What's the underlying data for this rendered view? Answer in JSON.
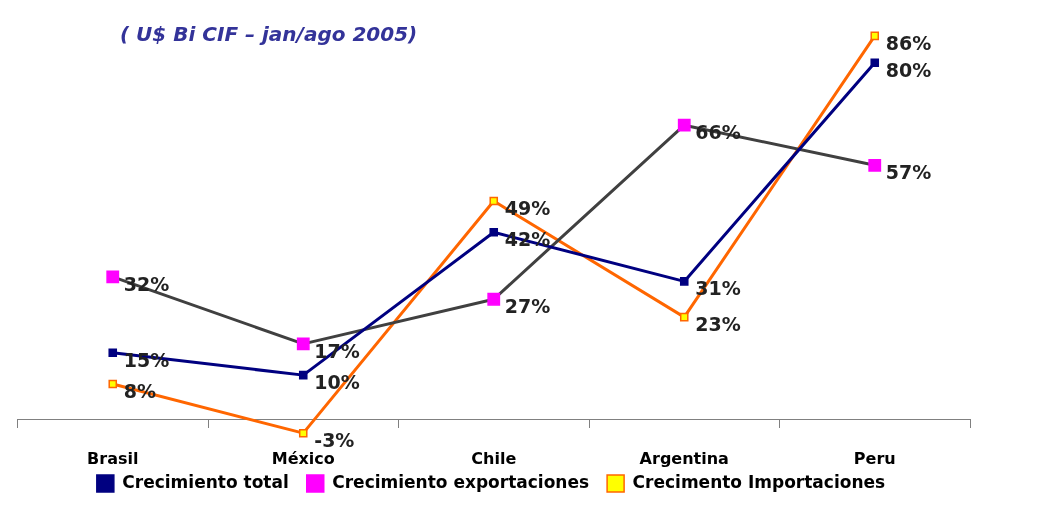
{
  "chart_data": {
    "type": "line",
    "title": "( U$ Bi CIF – jan/ago 2005)",
    "categories": [
      "Brasil",
      "México",
      "Chile",
      "Argentina",
      "Peru"
    ],
    "series": [
      {
        "name": "Crecimiento total",
        "color": "#000080",
        "colors": [
          "#000080",
          "#000080",
          "#000080",
          "#000080",
          "#000080"
        ],
        "values": [
          15,
          10,
          42,
          31,
          80
        ],
        "value_labels": [
          "15%",
          "10%",
          "42%",
          "31%",
          "80%"
        ]
      },
      {
        "name": "Crecimiento exportaciones",
        "color": "#404040",
        "colors": [
          "#ff00ff",
          "#ff00ff",
          "#ff00ff",
          "#ff00ff",
          "#ff00ff"
        ],
        "values": [
          32,
          17,
          27,
          66,
          57
        ],
        "value_labels": [
          "32%",
          "17%",
          "27%",
          "66%",
          "57%"
        ]
      },
      {
        "name": "Crecimento Importaciones",
        "color": "#ff6600",
        "colors": [
          "#ffff00",
          "#ffff00",
          "#ffff00",
          "#ffff00",
          "#ffff00"
        ],
        "values": [
          8,
          -3,
          49,
          23,
          86
        ],
        "value_labels": [
          "8%",
          "-3%",
          "49%",
          "23%",
          "86%"
        ]
      }
    ],
    "tick_labels": "x",
    "grid": false,
    "legend": "bottom",
    "marker": "square",
    "line_style": "solid"
  }
}
